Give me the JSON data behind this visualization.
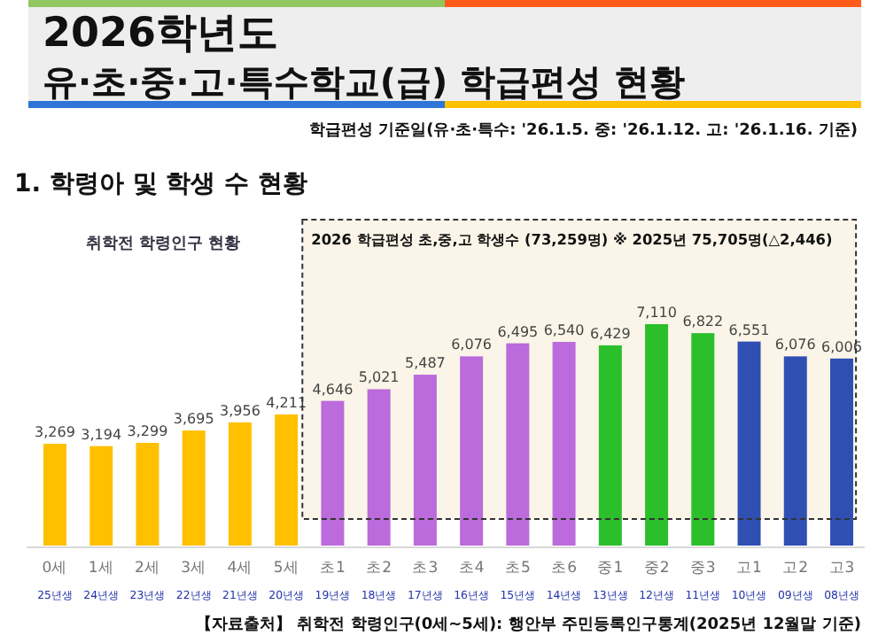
{
  "chart_data": {
    "type": "bar",
    "title": "2026학년도\n유·초·중·고·특수학교(급) 학급편성 현황",
    "subtitle": "학급편성 기준일(유·초·특수: '26.1.5. 중: '26.1.12. 고: '26.1.16. 기준)",
    "categories": [
      "0세",
      "1세",
      "2세",
      "3세",
      "4세",
      "5세",
      "초1",
      "초2",
      "초3",
      "초4",
      "초5",
      "초6",
      "중1",
      "중2",
      "중3",
      "고1",
      "고2",
      "고3"
    ],
    "values": [
      3269,
      3194,
      3299,
      3695,
      3956,
      4211,
      4646,
      5021,
      5487,
      6076,
      6495,
      6540,
      6429,
      7110,
      6822,
      6551,
      6076,
      6006
    ],
    "value_labels": [
      "3,269",
      "3,194",
      "3,299",
      "3,695",
      "3,956",
      "4,211",
      "4,646",
      "5,021",
      "5,487",
      "6,076",
      "6,495",
      "6,540",
      "6,429",
      "7,110",
      "6,822",
      "6,551",
      "6,076",
      "6,006"
    ],
    "colors": [
      "#ffc000",
      "#ffc000",
      "#ffc000",
      "#ffc000",
      "#ffc000",
      "#ffc000",
      "#bb6bdb",
      "#bb6bdb",
      "#bb6bdb",
      "#bb6bdb",
      "#bb6bdb",
      "#bb6bdb",
      "#2cbf2c",
      "#2cbf2c",
      "#2cbf2c",
      "#2f4fb3",
      "#2f4fb3",
      "#2f4fb3"
    ],
    "bands": [
      {
        "axis": "x",
        "from": "초1",
        "to": "고3",
        "label": "2026 학급편성 초,중,고 학생수 (73,259명) ※ 2025년 75,705명(△2,446)",
        "color": "#faf5e8"
      }
    ],
    "annotations": [
      "1. 학령아 및 학생 수 현황",
      "취학전 학령인구 현황",
      "【자료출처】 취학전 학령인구(0세~5세): 행안부 주민등록인구통계(2025년 12월말 기준)",
      "25년생",
      "24년생",
      "23년생",
      "22년생",
      "21년생",
      "20년생",
      "19년생",
      "18년생",
      "17년생",
      "16년생",
      "15년생",
      "14년생",
      "13년생",
      "12년생",
      "11년생",
      "10년생",
      "09년생",
      "08년생"
    ]
  }
}
